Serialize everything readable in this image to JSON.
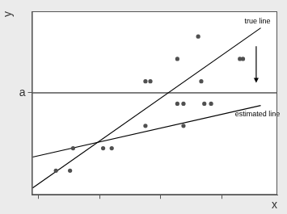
{
  "chart_data": {
    "type": "scatter",
    "x_label": "x",
    "y_label": "y",
    "xlim": [
      0.9,
      4.9
    ],
    "xticks": [
      1,
      2,
      3,
      4
    ],
    "ylim": [
      0,
      5.4
    ],
    "yticks": [
      {
        "value": 3,
        "label": "a"
      }
    ],
    "tick_labels": "y",
    "grid": false,
    "hline": 3,
    "series": [
      {
        "type": "scatter",
        "color": "#505050",
        "marker": "circle",
        "x": [
          1.29,
          1.52,
          1.57,
          2.06,
          2.2,
          2.75,
          2.75,
          2.83,
          3.27,
          3.27,
          3.37,
          3.37,
          3.61,
          3.66,
          3.71,
          3.82,
          4.29,
          4.34
        ],
        "values": [
          0.71,
          0.71,
          1.37,
          1.37,
          1.37,
          2.03,
          3.34,
          3.34,
          4.0,
          2.68,
          2.68,
          2.03,
          4.66,
          3.34,
          2.68,
          2.68,
          4.0,
          4.0
        ]
      },
      {
        "name": "true line",
        "type": "line",
        "color": "#000000",
        "line_style": "solid",
        "x": [
          0.91,
          4.63
        ],
        "values": [
          0.2,
          4.91
        ]
      },
      {
        "name": "estimated line",
        "type": "line",
        "color": "#000000",
        "line_style": "solid",
        "x": [
          0.91,
          4.63
        ],
        "values": [
          1.11,
          2.63
        ]
      }
    ]
  }
}
